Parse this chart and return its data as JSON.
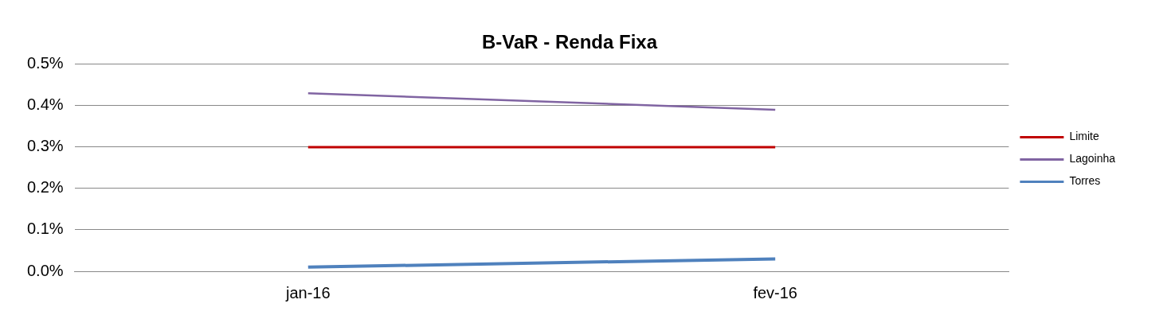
{
  "chart_data": {
    "type": "line",
    "title": "B-VaR - Renda Fixa",
    "categories": [
      "jan-16",
      "fev-16"
    ],
    "series": [
      {
        "name": "Limite",
        "color": "#c00000",
        "values": [
          0.3,
          0.3
        ]
      },
      {
        "name": "Lagoinha",
        "color": "#8064a2",
        "values": [
          0.43,
          0.39
        ]
      },
      {
        "name": "Torres",
        "color": "#4f81bd",
        "values": [
          0.01,
          0.03
        ]
      }
    ],
    "ylim": [
      0,
      0.5
    ],
    "yticks": [
      {
        "value": 0,
        "label": "0.0%"
      },
      {
        "value": 0.1,
        "label": "0.1%"
      },
      {
        "value": 0.2,
        "label": "0.2%"
      },
      {
        "value": 0.3,
        "label": "0.3%"
      },
      {
        "value": 0.4,
        "label": "0.4%"
      },
      {
        "value": 0.5,
        "label": "0.5%"
      }
    ],
    "grid": "y",
    "legend": "right",
    "marker": "none",
    "line_style": "solid"
  }
}
